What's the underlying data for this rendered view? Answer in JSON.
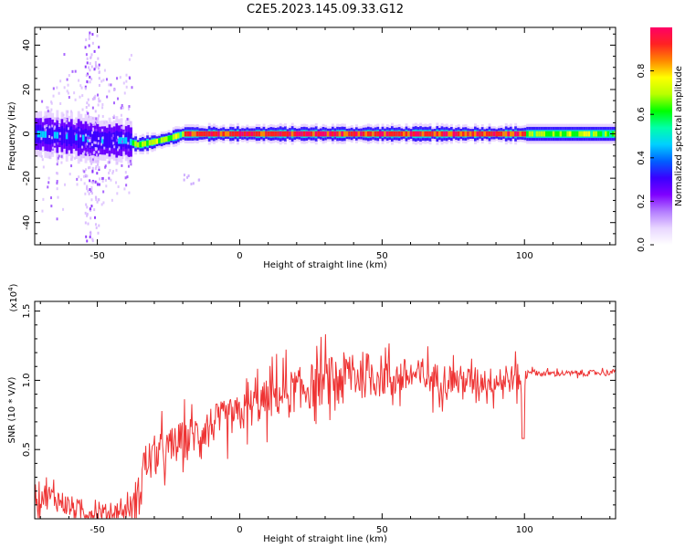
{
  "title": "C2E5.2023.145.09.33.G12",
  "colors": {
    "snr_line": "#ee3333",
    "background": "#ffffff",
    "colormap": [
      "#ffffff",
      "#e8d6ff",
      "#b37bff",
      "#7f00ff",
      "#3a00ff",
      "#0060ff",
      "#00d0ff",
      "#00ffaa",
      "#00ff00",
      "#b8ff00",
      "#ffff00",
      "#ff8800",
      "#ff2222",
      "#ff0066"
    ]
  },
  "chart_data": [
    {
      "type": "heatmap",
      "name": "spectrogram",
      "xlabel": "Height of straight line (km)",
      "ylabel": "Frequency (Hz)",
      "xlim": [
        -72,
        132
      ],
      "ylim": [
        -50,
        48
      ],
      "x_ticks": [
        -50,
        0,
        50,
        100
      ],
      "x_tick_labels": [
        "-50",
        "0",
        "50",
        "100"
      ],
      "y_ticks": [
        40,
        20,
        0,
        -20,
        -40
      ],
      "y_tick_labels": [
        "40",
        "20",
        "0",
        "-20",
        "-40"
      ],
      "colorbar": {
        "label": "Normalized spectral amplitude",
        "range": [
          0,
          1
        ],
        "ticks": [
          0.0,
          0.2,
          0.4,
          0.6,
          0.8
        ],
        "tick_labels": [
          "0.0",
          "0.2",
          "0.4",
          "0.6",
          "0.8"
        ]
      },
      "band_centers": [
        {
          "x": -72,
          "f": 0
        },
        {
          "x": -60,
          "f": -1
        },
        {
          "x": -50,
          "f": -3
        },
        {
          "x": -40,
          "f": -3
        },
        {
          "x": -36,
          "f": -5
        },
        {
          "x": -30,
          "f": -3.5
        },
        {
          "x": -25,
          "f": -2
        },
        {
          "x": -20,
          "f": 0
        },
        {
          "x": 0,
          "f": 0
        },
        {
          "x": 20,
          "f": 0
        },
        {
          "x": 60,
          "f": 0
        },
        {
          "x": 100,
          "f": 0
        },
        {
          "x": 132,
          "f": 0
        }
      ]
    },
    {
      "type": "line",
      "name": "snr",
      "xlabel": "Height of straight line (km)",
      "ylabel": "SNR (10 * V/V)",
      "y_multiplier": "(x10^4)",
      "xlim": [
        -72,
        132
      ],
      "ylim": [
        0,
        1.57
      ],
      "x_ticks": [
        -50,
        0,
        50,
        100
      ],
      "x_tick_labels": [
        "-50",
        "0",
        "50",
        "100"
      ],
      "y_ticks": [
        0.5,
        1.0,
        1.5
      ],
      "y_tick_labels": [
        "0.5",
        "1.0",
        "1.5"
      ],
      "envelope": {
        "x": [
          -72,
          -65,
          -60,
          -55,
          -50,
          -45,
          -40,
          -36,
          -34,
          -30,
          -25,
          -20,
          -15,
          -10,
          -5,
          0,
          5,
          10,
          15,
          20,
          25,
          30,
          35,
          40,
          45,
          50,
          55,
          60,
          65,
          70,
          75,
          80,
          85,
          90,
          95,
          98,
          100,
          101,
          105,
          110,
          120,
          132
        ],
        "y": [
          0.18,
          0.15,
          0.09,
          0.05,
          0.04,
          0.04,
          0.06,
          0.12,
          0.38,
          0.45,
          0.5,
          0.57,
          0.62,
          0.68,
          0.72,
          0.75,
          0.82,
          0.86,
          0.9,
          0.93,
          0.96,
          0.99,
          1.02,
          1.04,
          1.04,
          1.03,
          1.02,
          1.03,
          1.02,
          1.01,
          1.01,
          1.0,
          1.0,
          0.99,
          1.01,
          1.02,
          1.0,
          1.07,
          1.05,
          1.05,
          1.05,
          1.06
        ]
      },
      "noise_amplitude": {
        "x": [
          -72,
          -40,
          -34,
          -20,
          0,
          20,
          40,
          60,
          80,
          100,
          101,
          132
        ],
        "y": [
          0.1,
          0.06,
          0.16,
          0.14,
          0.14,
          0.16,
          0.18,
          0.13,
          0.1,
          0.1,
          0.02,
          0.02
        ]
      }
    }
  ]
}
